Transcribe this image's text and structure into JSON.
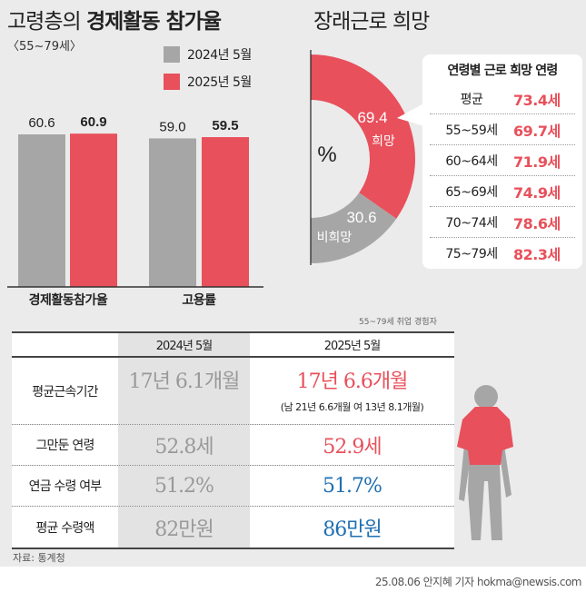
{
  "left": {
    "title_light": "고령층의",
    "title_bold": "경제활동 참가율",
    "subtitle": "〈55~79세〉",
    "legend": [
      {
        "label": "2024년 5월",
        "color": "#a6a6a6"
      },
      {
        "label": "2025년 5월",
        "color": "#e8505b"
      }
    ]
  },
  "chart_data": [
    {
      "type": "bar",
      "categories": [
        "경제활동참가율",
        "고용률"
      ],
      "series": [
        {
          "name": "2024년 5월",
          "values": [
            60.6,
            59.0
          ],
          "labels": [
            "60.6",
            "59.0"
          ]
        },
        {
          "name": "2025년 5월",
          "values": [
            60.9,
            59.5
          ],
          "labels": [
            "60.9",
            "59.5"
          ]
        }
      ],
      "ylim": [
        0,
        65
      ]
    },
    {
      "type": "pie",
      "title": "장래근로 희망",
      "unit": "%",
      "slices": [
        {
          "label": "희망",
          "value": 69.4,
          "text": "69.4",
          "color": "#e8505b"
        },
        {
          "label": "비희망",
          "value": 30.6,
          "text": "30.6",
          "color": "#a6a6a6"
        }
      ],
      "style": "half-donut"
    }
  ],
  "box": {
    "title": "연령별 근로 희망 연령",
    "rows": [
      [
        "평균",
        "73.4세"
      ],
      [
        "55~59세",
        "69.7세"
      ],
      [
        "60~64세",
        "71.9세"
      ],
      [
        "65~69세",
        "74.9세"
      ],
      [
        "70~74세",
        "78.6세"
      ],
      [
        "75~79세",
        "82.3세"
      ]
    ]
  },
  "table": {
    "note": "55~79세 취업 경험자",
    "headers": [
      "",
      "2024년 5월",
      "2025년 5월"
    ],
    "rows": [
      {
        "label": "평균근속기간",
        "v2024": "17년 6.1개월",
        "v2025": "17년 6.6개월",
        "detail": "(남 21년 6.6개월  여 13년 8.1개월)",
        "color": "red"
      },
      {
        "label": "그만둔 연령",
        "v2024": "52.8세",
        "v2025": "52.9세",
        "color": "red"
      },
      {
        "label": "연금 수령 여부",
        "v2024": "51.2%",
        "v2025": "51.7%",
        "color": "blue"
      },
      {
        "label": "평균 수령액",
        "v2024": "82만원",
        "v2025": "86만원",
        "color": "blue"
      }
    ]
  },
  "source": "자료: 통계청",
  "credit": "25.08.06 안지혜 기자 hokma@newsis.com"
}
